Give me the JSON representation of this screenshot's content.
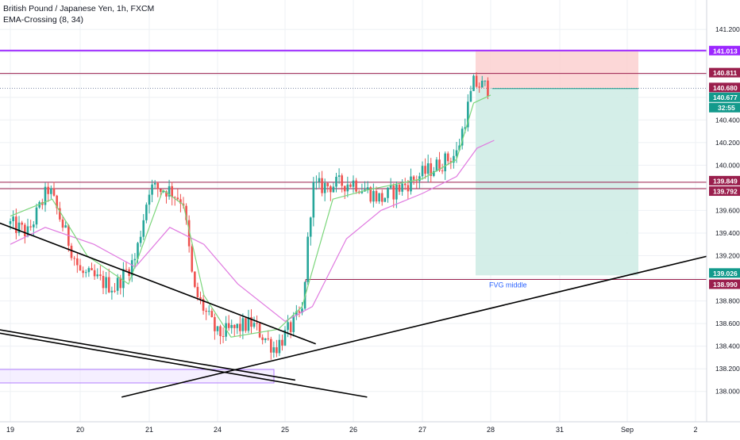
{
  "header": {
    "symbol_line": "British Pound / Japanese Yen, 1h, FXCM",
    "indicator_line": "EMA-Crossing (8, 34)"
  },
  "colors": {
    "background": "#ffffff",
    "grid": "#eef0f4",
    "bull": "#26a69a",
    "bear": "#ef5350",
    "ema_fast": "#7bd67b",
    "ema_slow": "#e07ae0",
    "purple_line": "#9c27ff",
    "resistance": "#9a1f4d",
    "stop_zone": "#fbd0d0",
    "target_zone": "#cfece6",
    "fvg_box": "#b27dff",
    "price_tag": "#9a1f4d",
    "current_tag": "#139a8c",
    "trend_line": "#000000",
    "fvg_label": "#2962ff"
  },
  "chart_data": {
    "type": "candlestick",
    "title": "British Pound / Japanese Yen, 1h, FXCM",
    "x_tick_labels": [
      "19",
      "20",
      "21",
      "24",
      "25",
      "26",
      "27",
      "28",
      "31",
      "Sep",
      "2"
    ],
    "y_tick_labels": [
      "141.200",
      "140.400",
      "140.200",
      "140.000",
      "139.600",
      "139.400",
      "139.200",
      "138.800",
      "138.600",
      "138.400",
      "138.200",
      "138.000"
    ],
    "ylim": [
      137.9,
      141.32
    ],
    "levels": [
      {
        "name": "purple-level",
        "value": 141.013,
        "label": "141.013"
      },
      {
        "name": "resistance-upper",
        "value": 140.811,
        "label": "140.811"
      },
      {
        "name": "price-line",
        "value": 140.68,
        "label": "140.680"
      },
      {
        "name": "current-price",
        "value": 140.677,
        "label": "140.677"
      },
      {
        "name": "support-upper",
        "value": 139.849,
        "label": "139.849"
      },
      {
        "name": "support-lower",
        "value": 139.792,
        "label": "139.792"
      },
      {
        "name": "target-level",
        "value": 139.026,
        "label": "139.026"
      },
      {
        "name": "fvg-middle-level",
        "value": 138.99,
        "label": "138.990"
      }
    ],
    "countdown": "32:55",
    "fvg_label": "FVG middle",
    "position": {
      "entry": 140.677,
      "stop": 141.02,
      "target": 139.026
    },
    "indicators": [
      {
        "name": "EMA 8"
      },
      {
        "name": "EMA 34"
      }
    ],
    "price_path": [
      {
        "day": 0.0,
        "price": 139.48
      },
      {
        "day": 0.25,
        "price": 139.4
      },
      {
        "day": 0.55,
        "price": 139.8
      },
      {
        "day": 0.7,
        "price": 139.55
      },
      {
        "day": 1.0,
        "price": 139.05
      },
      {
        "day": 1.5,
        "price": 138.92
      },
      {
        "day": 1.8,
        "price": 139.18
      },
      {
        "day": 2.0,
        "price": 139.8
      },
      {
        "day": 2.3,
        "price": 139.78
      },
      {
        "day": 2.5,
        "price": 139.68
      },
      {
        "day": 2.65,
        "price": 138.9
      },
      {
        "day": 3.0,
        "price": 138.5
      },
      {
        "day": 3.5,
        "price": 138.6
      },
      {
        "day": 3.85,
        "price": 138.38
      },
      {
        "day": 4.25,
        "price": 138.7
      },
      {
        "day": 4.4,
        "price": 139.8
      },
      {
        "day": 5.0,
        "price": 139.85
      },
      {
        "day": 5.4,
        "price": 139.7
      },
      {
        "day": 6.0,
        "price": 139.92
      },
      {
        "day": 6.5,
        "price": 140.1
      },
      {
        "day": 6.75,
        "price": 140.72
      },
      {
        "day": 7.0,
        "price": 140.68
      }
    ],
    "ema_fast": [
      {
        "day": 0.0,
        "price": 139.55
      },
      {
        "day": 0.6,
        "price": 139.7
      },
      {
        "day": 1.1,
        "price": 139.2
      },
      {
        "day": 1.7,
        "price": 138.95
      },
      {
        "day": 2.2,
        "price": 139.78
      },
      {
        "day": 2.5,
        "price": 139.65
      },
      {
        "day": 2.8,
        "price": 138.85
      },
      {
        "day": 3.2,
        "price": 138.48
      },
      {
        "day": 3.9,
        "price": 138.55
      },
      {
        "day": 4.25,
        "price": 138.75
      },
      {
        "day": 4.7,
        "price": 139.7
      },
      {
        "day": 5.2,
        "price": 139.78
      },
      {
        "day": 6.0,
        "price": 139.88
      },
      {
        "day": 6.5,
        "price": 140.05
      },
      {
        "day": 6.75,
        "price": 140.55
      },
      {
        "day": 7.0,
        "price": 140.62
      }
    ],
    "ema_slow": [
      {
        "day": 0.0,
        "price": 139.3
      },
      {
        "day": 0.5,
        "price": 139.45
      },
      {
        "day": 1.2,
        "price": 139.3
      },
      {
        "day": 1.8,
        "price": 139.1
      },
      {
        "day": 2.3,
        "price": 139.45
      },
      {
        "day": 2.8,
        "price": 139.3
      },
      {
        "day": 3.3,
        "price": 138.95
      },
      {
        "day": 4.0,
        "price": 138.62
      },
      {
        "day": 4.4,
        "price": 138.75
      },
      {
        "day": 4.9,
        "price": 139.35
      },
      {
        "day": 5.4,
        "price": 139.6
      },
      {
        "day": 6.0,
        "price": 139.75
      },
      {
        "day": 6.5,
        "price": 139.9
      },
      {
        "day": 6.8,
        "price": 140.15
      },
      {
        "day": 7.05,
        "price": 140.22
      }
    ],
    "trend_lines": [
      {
        "name": "descending-trendline-upper",
        "from": {
          "day": -0.2,
          "price": 139.5
        },
        "to": {
          "day": 4.45,
          "price": 138.42
        }
      },
      {
        "name": "descending-trendline-lower-a",
        "from": {
          "day": -0.2,
          "price": 138.55
        },
        "to": {
          "day": 4.15,
          "price": 138.1
        }
      },
      {
        "name": "descending-trendline-lower-b",
        "from": {
          "day": -0.2,
          "price": 138.52
        },
        "to": {
          "day": 5.2,
          "price": 137.95
        }
      },
      {
        "name": "ascending-trendline",
        "from": {
          "day": 1.6,
          "price": 137.95
        },
        "to": {
          "day": 10.2,
          "price": 139.2
        }
      }
    ]
  }
}
